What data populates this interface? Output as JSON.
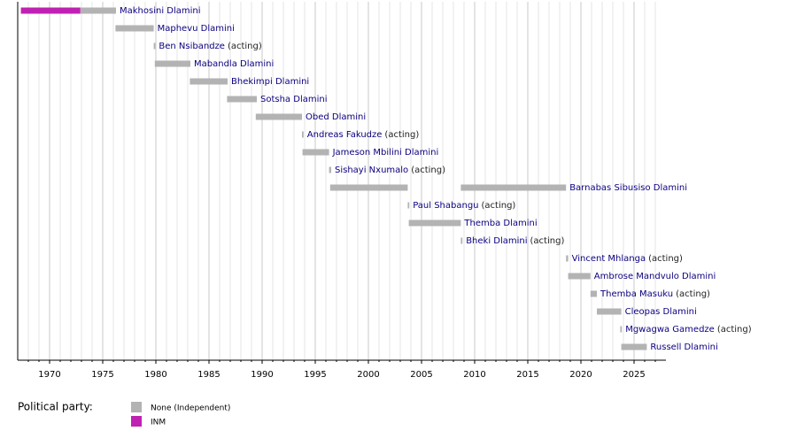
{
  "chart_data": {
    "type": "timeline",
    "xlim": [
      1967,
      2028
    ],
    "xticks": [
      1970,
      1975,
      1980,
      1985,
      1990,
      1995,
      2000,
      2005,
      2010,
      2015,
      2020,
      2025
    ],
    "minor_xticks": [
      1968,
      1969,
      1971,
      1972,
      1973,
      1974,
      1976,
      1977,
      1978,
      1979,
      1981,
      1982,
      1983,
      1984,
      1986,
      1987,
      1988,
      1989,
      1991,
      1992,
      1993,
      1994,
      1996,
      1997,
      1998,
      1999,
      2001,
      2002,
      2003,
      2004,
      2006,
      2007,
      2008,
      2009,
      2011,
      2012,
      2013,
      2014,
      2016,
      2017,
      2018,
      2019,
      2021,
      2022,
      2023,
      2024,
      2026,
      2027
    ],
    "grid": true,
    "legend_title": "Political party:",
    "parties": [
      {
        "name": "None (Independent)",
        "color": "#b3b3b3"
      },
      {
        "name": "INM",
        "color": "#c021b3"
      }
    ],
    "rows": [
      {
        "name": "Makhosini Dlamini",
        "segments": [
          {
            "start": 1967.3,
            "end": 1972.9,
            "party": "INM"
          },
          {
            "start": 1972.9,
            "end": 1976.25,
            "party": "None (Independent)"
          }
        ]
      },
      {
        "name": "Maphevu Dlamini",
        "segments": [
          {
            "start": 1976.2,
            "end": 1979.8,
            "party": "None (Independent)"
          }
        ]
      },
      {
        "name": "Ben Nsibandze",
        "note": "(acting)",
        "segments": [
          {
            "start": 1979.8,
            "end": 1979.95,
            "party": "None (Independent)"
          }
        ]
      },
      {
        "name": "Mabandla Dlamini",
        "segments": [
          {
            "start": 1979.9,
            "end": 1983.25,
            "party": "None (Independent)"
          }
        ]
      },
      {
        "name": "Bhekimpi Dlamini",
        "segments": [
          {
            "start": 1983.2,
            "end": 1986.75,
            "party": "None (Independent)"
          }
        ]
      },
      {
        "name": "Sotsha Dlamini",
        "segments": [
          {
            "start": 1986.7,
            "end": 1989.5,
            "party": "None (Independent)"
          }
        ]
      },
      {
        "name": "Obed Dlamini",
        "segments": [
          {
            "start": 1989.4,
            "end": 1993.75,
            "party": "None (Independent)"
          }
        ]
      },
      {
        "name": "Andreas Fakudze",
        "note": "(acting)",
        "segments": [
          {
            "start": 1993.75,
            "end": 1993.9,
            "party": "None (Independent)"
          }
        ]
      },
      {
        "name": "Jameson Mbilini Dlamini",
        "segments": [
          {
            "start": 1993.8,
            "end": 1996.3,
            "party": "None (Independent)"
          }
        ]
      },
      {
        "name": "Sishayi Nxumalo",
        "note": "(acting)",
        "segments": [
          {
            "start": 1996.3,
            "end": 1996.5,
            "party": "None (Independent)"
          }
        ]
      },
      {
        "name": "Barnabas Sibusiso Dlamini",
        "segments": [
          {
            "start": 1996.4,
            "end": 2003.7,
            "party": "None (Independent)"
          },
          {
            "start": 2008.7,
            "end": 2018.6,
            "party": "None (Independent)"
          }
        ]
      },
      {
        "name": "Paul Shabangu",
        "note": "(acting)",
        "segments": [
          {
            "start": 2003.7,
            "end": 2003.85,
            "party": "None (Independent)"
          }
        ]
      },
      {
        "name": "Themba Dlamini",
        "segments": [
          {
            "start": 2003.8,
            "end": 2008.7,
            "party": "None (Independent)"
          }
        ]
      },
      {
        "name": "Bheki Dlamini",
        "note": "(acting)",
        "segments": [
          {
            "start": 2008.7,
            "end": 2008.85,
            "party": "None (Independent)"
          }
        ]
      },
      {
        "name": "Vincent Mhlanga",
        "note": "(acting)",
        "segments": [
          {
            "start": 2018.6,
            "end": 2018.8,
            "party": "None (Independent)"
          }
        ]
      },
      {
        "name": "Ambrose Mandvulo Dlamini",
        "segments": [
          {
            "start": 2018.8,
            "end": 2020.9,
            "party": "None (Independent)"
          }
        ]
      },
      {
        "name": "Themba Masuku",
        "note": "(acting)",
        "segments": [
          {
            "start": 2020.9,
            "end": 2021.5,
            "party": "None (Independent)"
          }
        ]
      },
      {
        "name": "Cleopas Dlamini",
        "segments": [
          {
            "start": 2021.5,
            "end": 2023.8,
            "party": "None (Independent)"
          }
        ]
      },
      {
        "name": "Mgwagwa Gamedze",
        "note": "(acting)",
        "segments": [
          {
            "start": 2023.7,
            "end": 2023.85,
            "party": "None (Independent)"
          }
        ]
      },
      {
        "name": "Russell Dlamini",
        "segments": [
          {
            "start": 2023.8,
            "end": 2026.2,
            "party": "None (Independent)"
          }
        ]
      }
    ]
  }
}
